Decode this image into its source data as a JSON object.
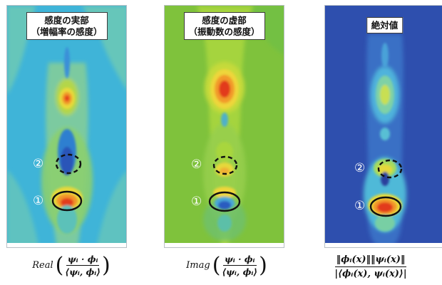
{
  "panels": [
    {
      "id": "real",
      "title_line1": "感度の実部",
      "title_line2": "（増幅率の感度）",
      "marker_2": "②",
      "marker_1": "①",
      "formula_function": "Real",
      "formula_numerator": "ψᵢ · ϕᵢ",
      "formula_denominator": "⟨ψᵢ, ϕᵢ⟩",
      "colors": {
        "background": "#3fb0d5",
        "mid": "#69c9b0",
        "warm": "#e8d83a",
        "hot": "#e64520"
      }
    },
    {
      "id": "imag",
      "title_line1": "感度の虚部",
      "title_line2": "（振動数の感度）",
      "marker_2": "②",
      "marker_1": "①",
      "formula_function": "Imag",
      "formula_numerator": "ψᵢ · ϕᵢ",
      "formula_denominator": "⟨ψᵢ, ϕᵢ⟩",
      "colors": {
        "background": "#7fc23a",
        "mid": "#a9d63b",
        "warm": "#f0d43a",
        "hot": "#e43a1f"
      }
    },
    {
      "id": "abs",
      "title_line1": "絶対値",
      "title_line2": "",
      "marker_2": "②",
      "marker_1": "①",
      "formula_function": "",
      "formula_numerator": "‖ϕᵢ(x)‖‖ψᵢ(x)‖",
      "formula_denominator": "|⟨ϕᵢ(x), ψᵢ(x)⟩|",
      "colors": {
        "background": "#2f4fae",
        "mid": "#46b7d8",
        "warm": "#e9de3a",
        "hot": "#e33a1f"
      }
    }
  ]
}
